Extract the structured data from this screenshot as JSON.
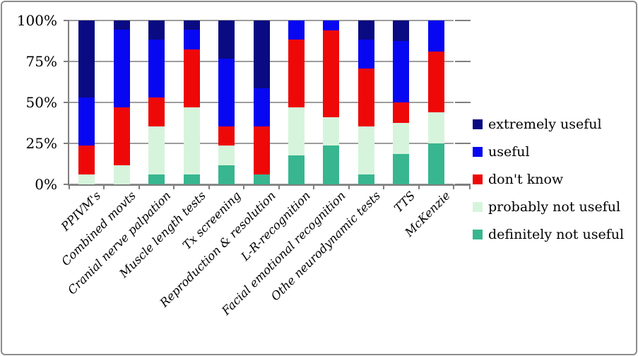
{
  "chart_data": {
    "type": "bar",
    "subtype": "100%-stacked-column",
    "title": "",
    "xlabel": "",
    "ylabel": "",
    "ylim": [
      0,
      100
    ],
    "grid": true,
    "legend_position": "right",
    "y_ticks": [
      "100%",
      "75%",
      "50%",
      "25%",
      "0%"
    ],
    "categories": [
      "PPIVM's",
      "Combined movts",
      "Cranial nerve palpation",
      "Muscle length tests",
      "Tx screening",
      "Reproduction & resolution",
      "L-R-recognition",
      "Facial emotional recognition",
      "Othe neurodynamic tests",
      "TTS",
      "McKenzie"
    ],
    "stack_order_bottom_to_top": [
      "definitely not useful",
      "probably not useful",
      "don't know",
      "useful",
      "extremely useful"
    ],
    "series": [
      {
        "name": "extremely useful",
        "color": "#0A0A82",
        "values": [
          47.1,
          5.9,
          11.8,
          5.9,
          23.5,
          41.2,
          0,
          0,
          11.8,
          12.5,
          0
        ]
      },
      {
        "name": "useful",
        "color": "#0707F2",
        "values": [
          29.4,
          47.1,
          35.3,
          11.8,
          41.2,
          23.5,
          11.8,
          5.9,
          17.6,
          37.5,
          18.8
        ]
      },
      {
        "name": "don't know",
        "color": "#EE0808",
        "values": [
          17.6,
          35.3,
          17.6,
          35.3,
          11.8,
          29.4,
          41.2,
          52.9,
          35.3,
          12.5,
          37.4
        ]
      },
      {
        "name": "probably not useful",
        "color": "#D6F4DC",
        "values": [
          5.9,
          11.8,
          29.4,
          41.2,
          11.8,
          0,
          29.4,
          17.6,
          29.4,
          18.8,
          18.8
        ]
      },
      {
        "name": "definitely not useful",
        "color": "#38B690",
        "values": [
          0,
          0,
          5.9,
          5.9,
          11.8,
          5.9,
          17.6,
          23.5,
          5.9,
          18.7,
          25
        ]
      }
    ]
  },
  "colors": {
    "background": "#FFFFFF",
    "frame_border": "#8C8C8C",
    "gridline": "#9D9D9D",
    "axis": "#7F7F7F",
    "text": "#000000"
  }
}
